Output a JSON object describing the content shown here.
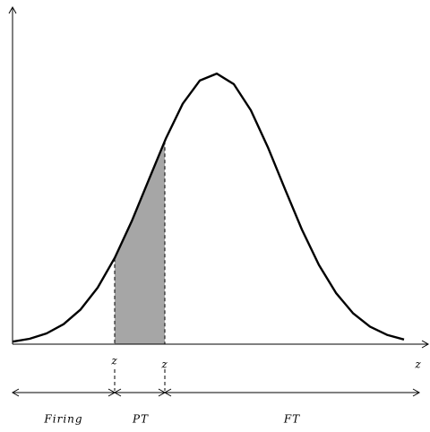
{
  "boundary_labels": [
    "z",
    "z",
    "z"
  ],
  "segments": [
    "Firing",
    "PT",
    "FT"
  ]
}
